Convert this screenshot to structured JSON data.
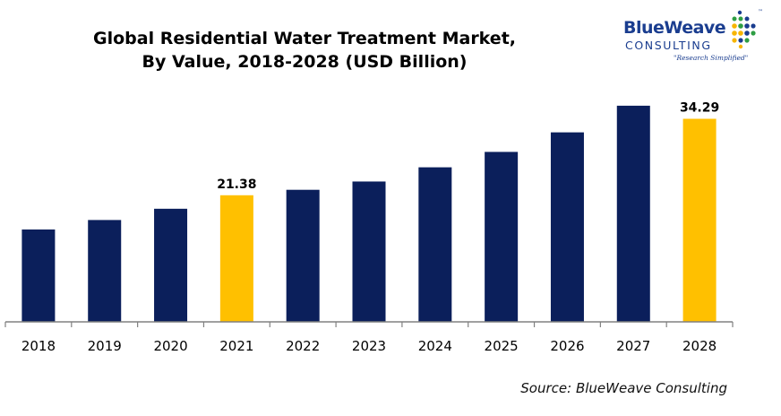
{
  "title_line1": "Global Residential Water Treatment Market,",
  "title_line2": "By Value, 2018-2028 (USD Billion)",
  "logo": {
    "name": "BlueWeave",
    "sub": "CONSULTING",
    "tagline": "\"Research Simplified\"",
    "tm": "™"
  },
  "source": "Source: BlueWeave Consulting",
  "colors": {
    "bar": "#0b1f5b",
    "highlight": "#ffc000",
    "axis": "#808080"
  },
  "chart_data": {
    "type": "bar",
    "categories": [
      "2018",
      "2019",
      "2020",
      "2021",
      "2022",
      "2023",
      "2024",
      "2025",
      "2026",
      "2027",
      "2028"
    ],
    "values": [
      15.6,
      17.2,
      19.1,
      21.38,
      22.3,
      23.7,
      26.1,
      28.7,
      32.0,
      36.5,
      34.29
    ],
    "data_labels": {
      "3": "21.38",
      "10": "34.29"
    },
    "highlighted": [
      3,
      10
    ],
    "title": "Global Residential Water Treatment Market, By Value, 2018-2028 (USD Billion)",
    "xlabel": "",
    "ylabel": "",
    "ylim": [
      0,
      38
    ],
    "grid": false,
    "legend": "none"
  }
}
